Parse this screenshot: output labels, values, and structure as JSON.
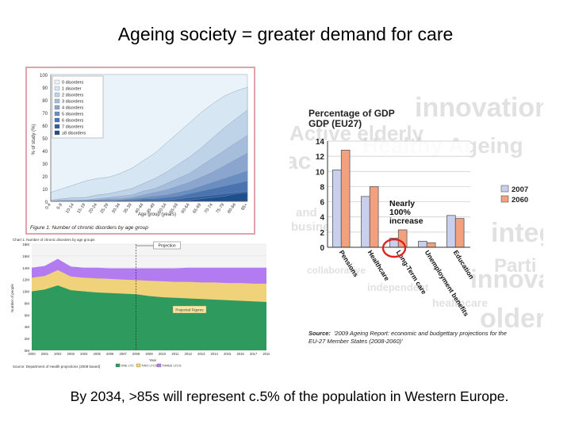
{
  "title": "Ageing society = greater demand for care",
  "caption": "By 2034, >85s will represent c.5% of the population in Western Europe.",
  "chart_data": [
    {
      "type": "area",
      "title": "Figure 1: Number of chronic disorders by age group",
      "ylabel": "% of study (%)",
      "xlabel": "Age group (years)",
      "ylim": [
        0,
        100
      ],
      "yticks": [
        "0",
        "10",
        "20",
        "30",
        "40",
        "50",
        "60",
        "70",
        "80",
        "90",
        "100"
      ],
      "categories": [
        "0-4",
        "5-9",
        "10-14",
        "15-19",
        "20-24",
        "25-29",
        "30-34",
        "35-39",
        "40-44",
        "45-49",
        "50-54",
        "55-59",
        "60-64",
        "65-69",
        "70-74",
        "75-79",
        "80-84",
        "85+"
      ],
      "series": [
        {
          "name": "≥8 disorders",
          "color": "#1f4e8c",
          "values": [
            0,
            0,
            0,
            0,
            0,
            0,
            0,
            0,
            0,
            0,
            0,
            1,
            1,
            2,
            3,
            4,
            6,
            7
          ]
        },
        {
          "name": "7 disorders",
          "color": "#2f5f9e",
          "values": [
            0,
            0,
            0,
            0,
            0,
            0,
            0,
            0,
            1,
            1,
            1,
            2,
            3,
            4,
            5,
            6,
            7,
            8
          ]
        },
        {
          "name": "6 disorders",
          "color": "#4a73b0",
          "values": [
            0,
            0,
            0,
            0,
            0,
            0,
            1,
            1,
            2,
            2,
            3,
            4,
            6,
            8,
            10,
            12,
            14,
            16
          ]
        },
        {
          "name": "5 disorders",
          "color": "#6a8ec0",
          "values": [
            0,
            0,
            0,
            0,
            1,
            1,
            1,
            2,
            3,
            4,
            5,
            7,
            9,
            12,
            15,
            18,
            21,
            24
          ]
        },
        {
          "name": "4 disorders",
          "color": "#8aa6cf",
          "values": [
            0,
            0,
            0,
            1,
            1,
            2,
            2,
            3,
            5,
            7,
            9,
            12,
            15,
            19,
            23,
            28,
            33,
            38
          ]
        },
        {
          "name": "3 disorders",
          "color": "#a7bddc",
          "values": [
            0,
            1,
            1,
            1,
            2,
            3,
            4,
            5,
            8,
            10,
            14,
            18,
            22,
            28,
            34,
            40,
            46,
            52
          ]
        },
        {
          "name": "2 disorders",
          "color": "#bfd3e8",
          "values": [
            1,
            2,
            3,
            3,
            5,
            6,
            8,
            10,
            14,
            18,
            23,
            29,
            35,
            42,
            50,
            58,
            65,
            72
          ]
        },
        {
          "name": "1 disorder",
          "color": "#d6e6f2",
          "values": [
            7,
            10,
            13,
            16,
            18,
            19,
            22,
            26,
            32,
            38,
            46,
            54,
            62,
            70,
            77,
            83,
            87,
            90
          ]
        },
        {
          "name": "0 disorders",
          "color": "#eaf3f9",
          "values": [
            100,
            100,
            100,
            100,
            100,
            100,
            100,
            100,
            100,
            100,
            100,
            100,
            100,
            100,
            100,
            100,
            100,
            100
          ]
        }
      ]
    },
    {
      "type": "area",
      "title": "Chart 1: Number of chronic disorders by age groups",
      "ylabel": "Number of people",
      "xlabel": "Year",
      "years": [
        "2000",
        "2001",
        "2002",
        "2003",
        "2004",
        "2005",
        "2006",
        "2007",
        "2008",
        "2009",
        "2010",
        "2011",
        "2012",
        "2013",
        "2014",
        "2015",
        "2016",
        "2017",
        "2018"
      ],
      "yticks": [
        "0M",
        "2M",
        "4M",
        "6M",
        "8M",
        "10M",
        "12M",
        "14M",
        "16M",
        "18M"
      ],
      "ylim": [
        0,
        18
      ],
      "projection_start": "2008",
      "projection_label": "Projection",
      "projected_label": "Projected Figures",
      "source": "Source: Department of Health projections (2008 based)",
      "legend": [
        "ONE LTC",
        "TWO LTCS",
        "THREE LTCS"
      ],
      "series": [
        {
          "name": "ONE LTC",
          "color": "#2e9a5e",
          "values": [
            10.0,
            10.3,
            11.0,
            10.2,
            10.0,
            9.8,
            9.7,
            9.6,
            9.5,
            9.2,
            9.0,
            8.9,
            8.8,
            8.7,
            8.6,
            8.5,
            8.4,
            8.3,
            8.2
          ]
        },
        {
          "name": "TWO LTCS",
          "color": "#f0d27a",
          "values": [
            12.3,
            12.6,
            13.6,
            12.5,
            12.3,
            12.2,
            12.1,
            12.0,
            11.9,
            11.8,
            11.7,
            11.6,
            11.6,
            11.5,
            11.5,
            11.4,
            11.4,
            11.3,
            11.3
          ]
        },
        {
          "name": "THREE LTCS",
          "color": "#b27cf0",
          "values": [
            14.0,
            14.3,
            15.5,
            14.2,
            14.0,
            14.0,
            13.9,
            13.9,
            13.9,
            13.9,
            13.9,
            13.9,
            14.0,
            14.0,
            14.0,
            14.0,
            14.0,
            14.0,
            14.0
          ]
        }
      ]
    },
    {
      "type": "bar",
      "title": "Percentage of GDP (EU27)",
      "categories": [
        "Pensions",
        "Healthcare",
        "Long-Term care",
        "Unemployment benefits",
        "Education"
      ],
      "series": [
        {
          "name": "2007",
          "color": "#c8d0ee",
          "values": [
            10.2,
            6.7,
            1.2,
            0.8,
            4.2
          ]
        },
        {
          "name": "2060",
          "color": "#f2a07e",
          "values": [
            12.8,
            8.0,
            2.3,
            0.6,
            3.8
          ]
        }
      ],
      "ylim": [
        0,
        14
      ],
      "yticks": [
        "0",
        "2",
        "4",
        "6",
        "8",
        "10",
        "12",
        "14"
      ],
      "annotation": [
        "Nearly",
        "100%",
        "increase"
      ],
      "source_label": "Source:",
      "source_text": "'2009 Ageing Report: economic and budgettary projections for the EU-27 Member States (2008-2060)'",
      "background_words": [
        "innovation",
        "Active elderly",
        "Healthy Ageing",
        "integ",
        "Parti",
        "innovation",
        "older",
        "healthcare",
        "independent",
        "collaborative",
        "business",
        "and",
        "ac"
      ],
      "colors": {
        "bg_words": "#c9c9c9",
        "circle": "#e0221f"
      }
    }
  ]
}
